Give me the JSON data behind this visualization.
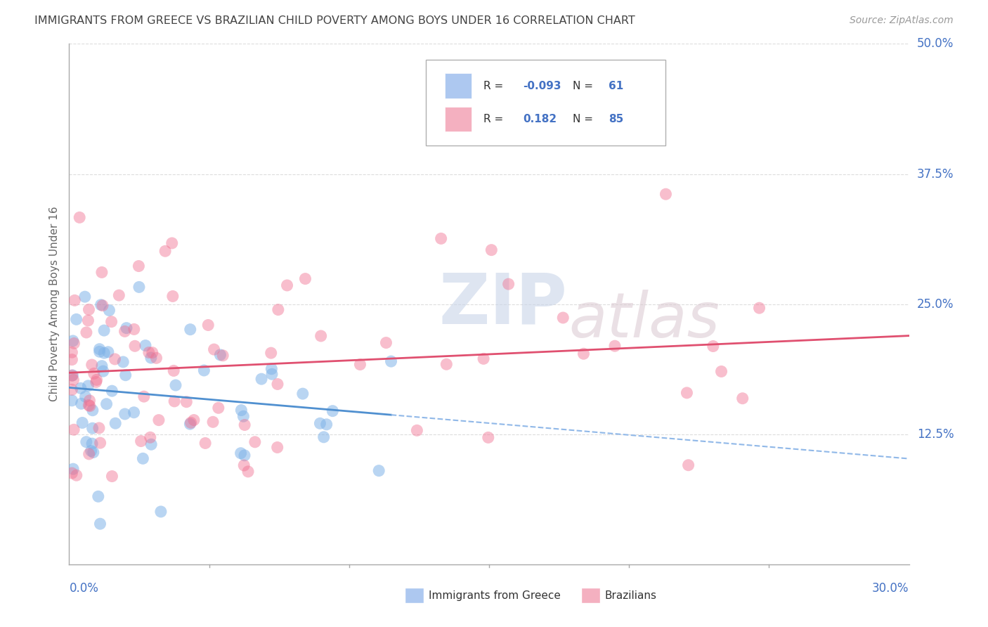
{
  "title": "IMMIGRANTS FROM GREECE VS BRAZILIAN CHILD POVERTY AMONG BOYS UNDER 16 CORRELATION CHART",
  "source": "Source: ZipAtlas.com",
  "ylabel": "Child Poverty Among Boys Under 16",
  "xlim": [
    0.0,
    0.3
  ],
  "ylim": [
    0.0,
    0.5
  ],
  "ytick_labels": [
    "12.5%",
    "25.0%",
    "37.5%",
    "50.0%"
  ],
  "ytick_values": [
    0.125,
    0.25,
    0.375,
    0.5
  ],
  "greece_R": -0.093,
  "greece_N": 61,
  "brazil_R": 0.182,
  "brazil_N": 85,
  "greece_color": "#80b3e8",
  "brazil_color": "#f07090",
  "greece_legend_color": "#adc8f0",
  "brazil_legend_color": "#f4b0c0",
  "title_color": "#444444",
  "axis_color": "#aaaaaa",
  "grid_color": "#dddddd",
  "label_color": "#4472c4"
}
